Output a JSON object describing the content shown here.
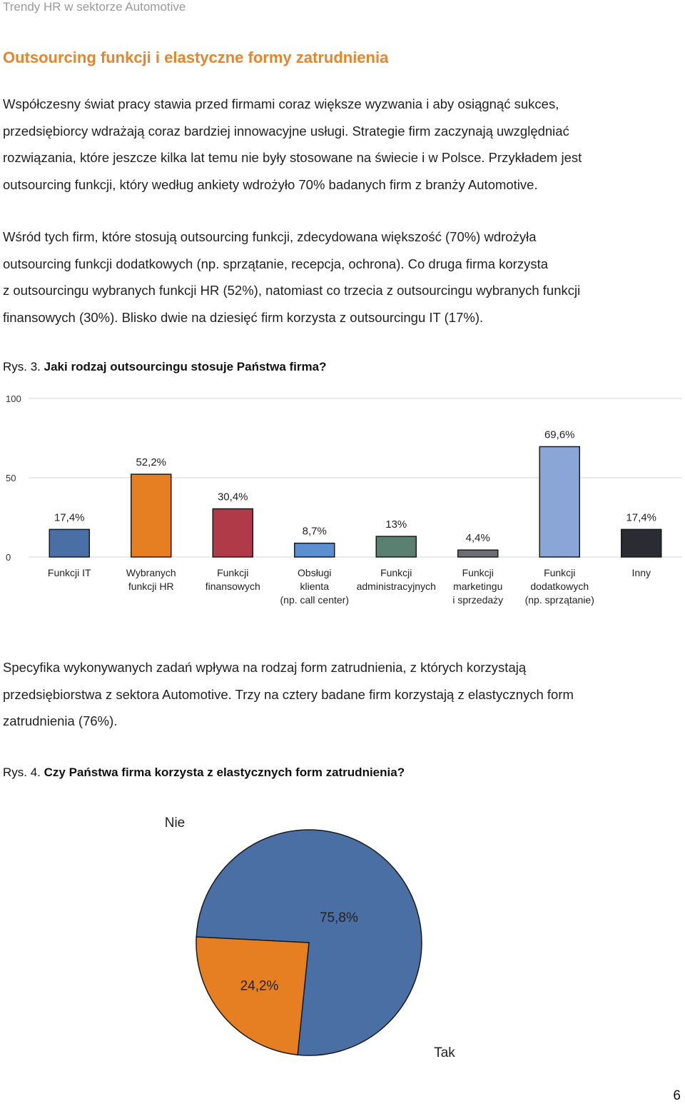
{
  "header": {
    "running_title": "Trendy HR w sektorze Automotive"
  },
  "section": {
    "title": "Outsourcing funkcji i elastyczne formy zatrudnienia"
  },
  "paragraphs": {
    "p1": [
      "Współczesny świat pracy stawia przed firmami coraz większe wyzwania i aby osiągnąć sukces,",
      "przedsiębiorcy wdrażają coraz bardziej innowacyjne usługi. Strategie firm zaczynają uwzględniać",
      "rozwiązania, które jeszcze kilka lat temu nie były stosowane na świecie i w Polsce. Przykładem jest",
      "outsourcing funkcji, który według ankiety wdrożyło 70% badanych firm z branży Automotive."
    ],
    "p2": [
      "Wśród tych firm, które stosują outsourcing funkcji, zdecydowana większość (70%) wdrożyła",
      "outsourcing funkcji dodatkowych (np. sprzątanie, recepcja, ochrona). Co druga firma korzysta",
      "z outsourcingu wybranych funkcji HR (52%), natomiast co trzecia z outsourcingu wybranych funkcji",
      "finansowych (30%). Blisko dwie na dziesięć firm korzysta z outsourcingu IT (17%)."
    ],
    "p3": [
      "Specyfika wykonywanych zadań wpływa na rodzaj form zatrudnienia, z których korzystają",
      "przedsiębiorstwa z sektora Automotive. Trzy na cztery badane firm korzystają z elastycznych form",
      "zatrudnienia (76%)."
    ]
  },
  "figures": {
    "fig3": {
      "label": "Rys. 3.",
      "title": "Jaki rodzaj outsourcingu stosuje Państwa firma?"
    },
    "fig4": {
      "label": "Rys. 4.",
      "title": "Czy Państwa firma korzysta z elastycznych form zatrudnienia?"
    }
  },
  "chart_data": [
    {
      "type": "bar",
      "title": "",
      "ylim": [
        0,
        100
      ],
      "yticks": [
        "0",
        "50",
        "100"
      ],
      "grid": true,
      "categories": [
        [
          "Funkcji IT"
        ],
        [
          "Wybranych",
          "funkcji HR"
        ],
        [
          "Funkcji",
          "finansowych"
        ],
        [
          "Obsługi",
          "klienta",
          "(np. call center)"
        ],
        [
          "Funkcji",
          "administracyjnych"
        ],
        [
          "Funkcji",
          "marketingu",
          "i sprzedaży"
        ],
        [
          "Funkcji",
          "dodatkowych",
          "(np. sprzątanie)"
        ],
        [
          "Inny"
        ]
      ],
      "values": [
        17.4,
        52.2,
        30.4,
        8.7,
        13,
        4.4,
        69.6,
        17.4
      ],
      "value_labels": [
        "17,4%",
        "52,2%",
        "30,4%",
        "8,7%",
        "13%",
        "4,4%",
        "69,6%",
        "17,4%"
      ],
      "colors": [
        "#4a6fa5",
        "#e67e22",
        "#b03a48",
        "#5b8fd0",
        "#5a8072",
        "#6b6e73",
        "#89a6d6",
        "#2b2b33"
      ]
    },
    {
      "type": "pie",
      "title": "",
      "labels": [
        "Tak",
        "Nie"
      ],
      "values": [
        75.8,
        24.2
      ],
      "value_labels": [
        "75,8%",
        "24,2%"
      ],
      "colors": [
        "#4a6fa5",
        "#e67e22"
      ]
    }
  ],
  "footer": {
    "page_number": "6"
  }
}
